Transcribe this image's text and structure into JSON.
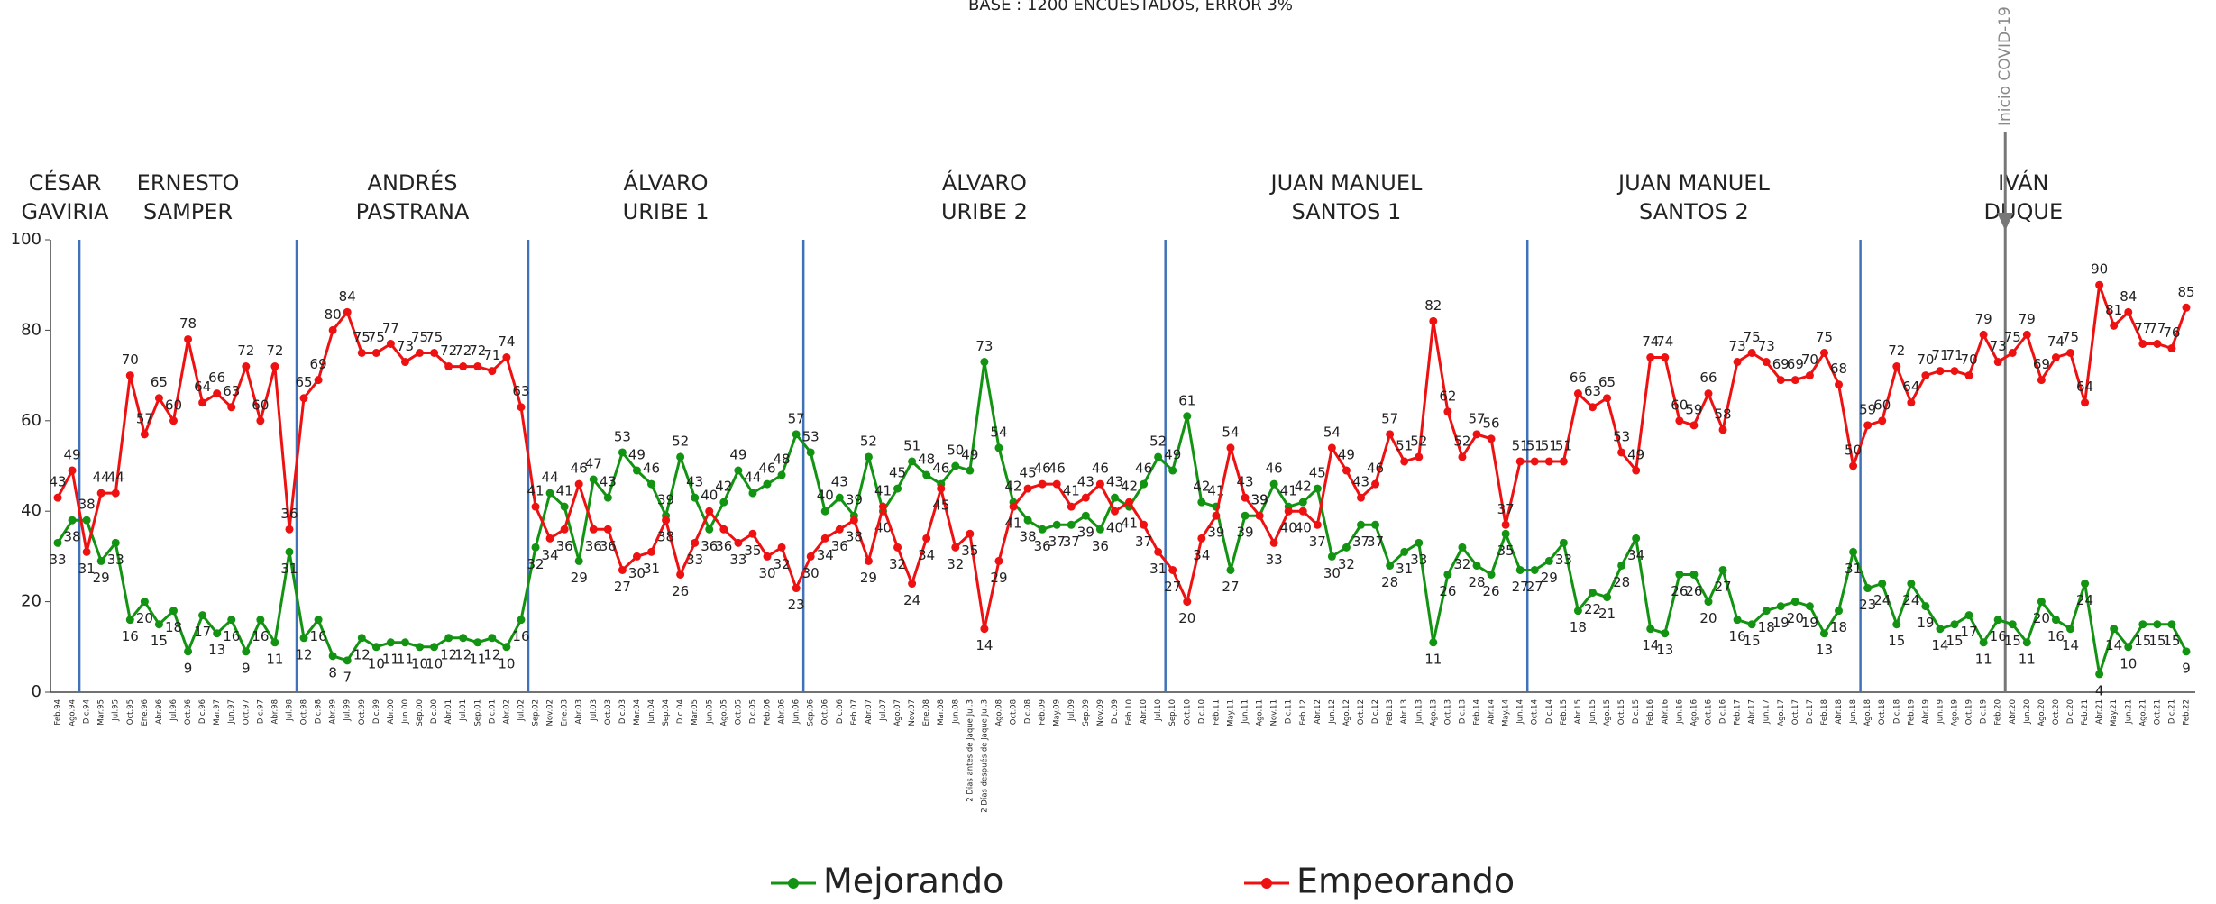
{
  "chart_data": {
    "type": "line",
    "title": "BASE : 1200 ENCUESTADOS, ERROR 3%",
    "categories": [
      "Feb.94",
      "Ago.94",
      "Dic.94",
      "Mar.95",
      "Jul.95",
      "Oct.95",
      "Ene.96",
      "Abr.96",
      "Jul.96",
      "Oct.96",
      "Dic.96",
      "Mar.97",
      "Jun.97",
      "Oct.97",
      "Dic.97",
      "Abr.98",
      "Jul.98",
      "Oct.98",
      "Dic.98",
      "Abr.99",
      "Jul.99",
      "Oct.99",
      "Dic.99",
      "Abr.00",
      "Jun.00",
      "Sep.00",
      "Dic.00",
      "Abr.01",
      "Jul.01",
      "Sep.01",
      "Dic.01",
      "Abr.02",
      "Jul.02",
      "Sep.02",
      "Nov.02",
      "Ene.03",
      "Abr.03",
      "Jul.03",
      "Oct.03",
      "Dic.03",
      "Mar.04",
      "Jun.04",
      "Sep.04",
      "Dic.04",
      "Mar.05",
      "Jun.05",
      "Ago.05",
      "Oct.05",
      "Dic.05",
      "Feb.06",
      "Abr.06",
      "Jun.06",
      "Sep.06",
      "Oct.06",
      "Dic.06",
      "Feb.07",
      "Abr.07",
      "Jul.07",
      "Ago.07",
      "Nov.07",
      "Ene.08",
      "Mar.08",
      "Jun.08",
      "2 Días antes de Jaque Jul.3",
      "2 Días después de Jaque Jul.3",
      "Ago.08",
      "Oct.08",
      "Dic.08",
      "Feb.09",
      "May.09",
      "Jul.09",
      "Sep.09",
      "Nov.09",
      "Dic.09",
      "Feb.10",
      "Abr.10",
      "Jul.10",
      "Sep.10",
      "Oct.10",
      "Dic.10",
      "Feb.11",
      "May.11",
      "Jun.11",
      "Ago.11",
      "Nov.11",
      "Dic.11",
      "Feb.12",
      "Abr.12",
      "Jun.12",
      "Ago.12",
      "Oct.12",
      "Dic.12",
      "Feb.13",
      "Abr.13",
      "Jun.13",
      "Ago.13",
      "Oct.13",
      "Dic.13",
      "Feb.14",
      "Abr.14",
      "May.14",
      "Jun.14",
      "Oct.14",
      "Dic.14",
      "Feb.15",
      "Abr.15",
      "Jun.15",
      "Ago.15",
      "Oct.15",
      "Dic.15",
      "Feb.16",
      "Abr.16",
      "Jun.16",
      "Ago.16",
      "Oct.16",
      "Dic.16",
      "Feb.17",
      "Abr.17",
      "Jun.17",
      "Ago.17",
      "Oct.17",
      "Dic.17",
      "Feb.18",
      "Abr.18",
      "Jun.18",
      "Ago.18",
      "Oct.18",
      "Dic.18",
      "Feb.19",
      "Abr.19",
      "Jun.19",
      "Ago.19",
      "Oct.19",
      "Dic.19",
      "Feb.20",
      "Abr.20",
      "Jun.20",
      "Ago.20",
      "Oct.20",
      "Dic.20",
      "Feb.21",
      "Abr.21",
      "May.21",
      "Jun.21",
      "Ago.21",
      "Oct.21",
      "Dic.21",
      "Feb.22"
    ],
    "series": [
      {
        "name": "Mejorando",
        "color": "#129312",
        "values": [
          33,
          38,
          38,
          29,
          33,
          16,
          20,
          15,
          18,
          9,
          17,
          13,
          16,
          9,
          16,
          11,
          31,
          12,
          16,
          8,
          7,
          12,
          10,
          11,
          11,
          10,
          10,
          12,
          12,
          11,
          12,
          10,
          16,
          32,
          44,
          41,
          29,
          47,
          43,
          53,
          49,
          46,
          39,
          52,
          43,
          36,
          42,
          49,
          44,
          46,
          48,
          57,
          53,
          40,
          43,
          39,
          52,
          40,
          45,
          51,
          48,
          46,
          50,
          49,
          73,
          54,
          42,
          38,
          36,
          37,
          37,
          39,
          36,
          43,
          41,
          46,
          52,
          49,
          61,
          42,
          41,
          27,
          39,
          39,
          46,
          41,
          42,
          45,
          30,
          32,
          37,
          37,
          28,
          31,
          33,
          11,
          26,
          32,
          28,
          26,
          35,
          27,
          27,
          29,
          33,
          18,
          22,
          21,
          28,
          34,
          14,
          13,
          26,
          26,
          20,
          27,
          16,
          15,
          18,
          19,
          20,
          19,
          13,
          18,
          31,
          23,
          24,
          15,
          24,
          19,
          14,
          15,
          17,
          11,
          16,
          15,
          11,
          20,
          16,
          14,
          24,
          4,
          14,
          10,
          15,
          15,
          15,
          9
        ]
      },
      {
        "name": "Empeorando",
        "color": "#ee1111",
        "values": [
          43,
          49,
          31,
          44,
          44,
          70,
          57,
          65,
          60,
          78,
          64,
          66,
          63,
          72,
          60,
          72,
          36,
          65,
          69,
          80,
          84,
          75,
          75,
          77,
          73,
          75,
          75,
          72,
          72,
          72,
          71,
          74,
          63,
          41,
          34,
          36,
          46,
          36,
          36,
          27,
          30,
          31,
          38,
          26,
          33,
          40,
          36,
          33,
          35,
          30,
          32,
          23,
          30,
          34,
          36,
          38,
          29,
          41,
          32,
          24,
          34,
          45,
          32,
          35,
          14,
          29,
          41,
          45,
          46,
          46,
          41,
          43,
          46,
          40,
          42,
          37,
          31,
          27,
          20,
          34,
          39,
          54,
          43,
          39,
          33,
          40,
          40,
          37,
          54,
          49,
          43,
          46,
          57,
          51,
          52,
          82,
          62,
          52,
          57,
          56,
          37,
          51,
          51,
          51,
          51,
          66,
          63,
          65,
          53,
          49,
          74,
          74,
          60,
          59,
          66,
          58,
          73,
          75,
          73,
          69,
          69,
          70,
          75,
          68,
          50,
          59,
          60,
          72,
          64,
          70,
          71,
          71,
          70,
          79,
          73,
          75,
          79,
          69,
          74,
          75,
          64,
          90,
          81,
          84,
          77,
          77,
          76,
          85
        ]
      }
    ],
    "ylim": [
      0,
      100
    ],
    "yticks": [
      0,
      20,
      40,
      60,
      80,
      100
    ],
    "periods": [
      {
        "label": [
          "CÉSAR",
          "GAVIRIA"
        ],
        "start": "Feb.94"
      },
      {
        "label": [
          "ERNESTO",
          "SAMPER"
        ],
        "start": "Dic.94"
      },
      {
        "label": [
          "ANDRÉS",
          "PASTRANA"
        ],
        "start": "Oct.98"
      },
      {
        "label": [
          "ÁLVARO",
          "URIBE 1"
        ],
        "start": "Sep.02"
      },
      {
        "label": [
          "ÁLVARO",
          "URIBE 2"
        ],
        "start": "Sep.06"
      },
      {
        "label": [
          "JUAN MANUEL",
          "SANTOS 1"
        ],
        "start": "Sep.10"
      },
      {
        "label": [
          "JUAN MANUEL",
          "SANTOS 2"
        ],
        "start": "Oct.14"
      },
      {
        "label": [
          "IVÁN",
          "DUQUE"
        ],
        "start": "Ago.18"
      }
    ],
    "annotation": {
      "text": "Inicio COVID-19",
      "start": "Abr.20"
    }
  }
}
